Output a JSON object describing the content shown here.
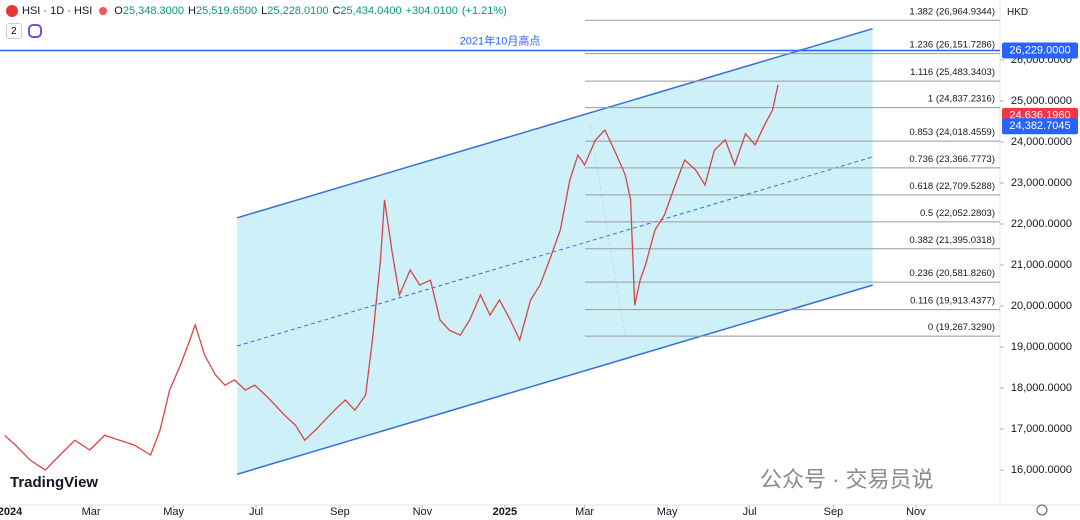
{
  "symbol": "HSI · 1D · HSI",
  "ohlc": [
    {
      "key": "O",
      "price": {
        "value": 25348.3,
        "label": "25,348.3000"
      }
    },
    {
      "key": "H",
      "price": {
        "value": 25519.65,
        "label": "25,519.6500"
      }
    },
    {
      "key": "L",
      "price": {
        "value": 25228.01,
        "label": "25,228.0100"
      }
    },
    {
      "key": "C",
      "price": {
        "value": 25434.04,
        "label": "25,434.0400"
      }
    }
  ],
  "change": {
    "value": 304.01,
    "label": "+304.0100"
  },
  "change_pct": {
    "value": 1.21,
    "label": "(+1.21%)"
  },
  "indicator_count": "2",
  "currency": "HKD",
  "watermark": "公众号 · 交易员说",
  "logo": "TradingView",
  "chart_data": {
    "type": "line",
    "color": "#d84545",
    "x": [
      -4,
      4,
      15,
      26,
      37,
      48,
      59,
      70,
      81,
      92,
      104,
      111,
      118,
      126,
      133,
      137,
      144,
      152,
      159,
      166,
      174,
      181,
      189,
      196,
      203,
      211,
      218,
      226,
      233,
      240,
      248,
      255,
      263,
      268,
      274,
      277,
      283,
      288,
      296,
      303,
      311,
      318,
      325,
      333,
      340,
      348,
      355,
      362,
      370,
      377,
      385,
      392,
      399,
      407,
      414,
      420,
      425,
      433,
      440,
      447,
      455,
      459,
      462,
      466,
      470,
      477,
      484,
      492,
      499,
      507,
      514,
      521,
      529,
      536,
      544,
      551,
      558,
      564,
      568
    ],
    "values": [
      16850,
      16610,
      16240,
      16000,
      16370,
      16730,
      16490,
      16850,
      16730,
      16610,
      16370,
      16980,
      17950,
      18560,
      19170,
      19540,
      18800,
      18320,
      18070,
      18200,
      17950,
      18070,
      17830,
      17590,
      17340,
      17100,
      16730,
      16980,
      17220,
      17460,
      17710,
      17460,
      17830,
      19170,
      21120,
      22590,
      21240,
      20270,
      20880,
      20510,
      20630,
      19660,
      19410,
      19290,
      19660,
      20270,
      19780,
      20150,
      19660,
      19170,
      20150,
      20510,
      21120,
      21850,
      23070,
      23680,
      23440,
      24050,
      24290,
      23800,
      23200,
      22590,
      20020,
      20630,
      21000,
      21850,
      22220,
      22950,
      23560,
      23320,
      22950,
      23800,
      24050,
      23440,
      24200,
      23930,
      24410,
      24780,
      25390
    ],
    "xlim": [
      -7.4,
      732.2
    ],
    "xticks": [
      {
        "value": 0,
        "label": "2024"
      },
      {
        "value": 60,
        "label": "Mar"
      },
      {
        "value": 121,
        "label": "May"
      },
      {
        "value": 182,
        "label": "Jul"
      },
      {
        "value": 244,
        "label": "Sep"
      },
      {
        "value": 305,
        "label": "Nov"
      },
      {
        "value": 366,
        "label": "2025"
      },
      {
        "value": 425,
        "label": "Mar"
      },
      {
        "value": 486,
        "label": "May"
      },
      {
        "value": 547,
        "label": "Jul"
      },
      {
        "value": 609,
        "label": "Sep"
      },
      {
        "value": 670,
        "label": "Nov"
      }
    ],
    "ylim": [
      15150,
      27460
    ],
    "yticks": [
      {
        "value": 16000,
        "label": "16,000.0000"
      },
      {
        "value": 17000,
        "label": "17,000.0000"
      },
      {
        "value": 18000,
        "label": "18,000.0000"
      },
      {
        "value": 19000,
        "label": "19,000.0000"
      },
      {
        "value": 20000,
        "label": "20,000.0000"
      },
      {
        "value": 21000,
        "label": "21,000.0000"
      },
      {
        "value": 22000,
        "label": "22,000.0000"
      },
      {
        "value": 23000,
        "label": "23,000.0000"
      },
      {
        "value": 24000,
        "label": "24,000.0000"
      },
      {
        "value": 25000,
        "label": "25,000.0000"
      },
      {
        "value": 26000,
        "label": "26,000.0000"
      }
    ],
    "channel": {
      "x": [
        168,
        638
      ],
      "upper": [
        22150,
        26760
      ],
      "lower": [
        15900,
        20510
      ],
      "color": "#3a6fd8",
      "fill": "#c9eef7"
    },
    "fib_levels": [
      {
        "ratio": 1.382,
        "price": {
          "value": 26964.9344,
          "label": "(26,964.9344)"
        }
      },
      {
        "ratio": 1.236,
        "price": {
          "value": 26151.7286,
          "label": "(26,151.7286)"
        }
      },
      {
        "ratio": 1.116,
        "price": {
          "value": 25483.3403,
          "label": "(25,483.3403)"
        }
      },
      {
        "ratio": 1,
        "price": {
          "value": 24837.2316,
          "label": "(24,837.2316)"
        }
      },
      {
        "ratio": 0.853,
        "price": {
          "value": 24018.4559,
          "label": "(24,018.4559)"
        }
      },
      {
        "ratio": 0.736,
        "price": {
          "value": 23366.7773,
          "label": "(23,366.7773)"
        }
      },
      {
        "ratio": 0.618,
        "price": {
          "value": 22709.5288,
          "label": "(22,709.5288)"
        }
      },
      {
        "ratio": 0.5,
        "price": {
          "value": 22052.2803,
          "label": "(22,052.2803)"
        }
      },
      {
        "ratio": 0.382,
        "price": {
          "value": 21395.0318,
          "label": "(21,395.0318)"
        }
      },
      {
        "ratio": 0.236,
        "price": {
          "value": 20581.826,
          "label": "(20,581.8260)"
        }
      },
      {
        "ratio": 0.116,
        "price": {
          "value": 19913.4377,
          "label": "(19,913.4377)"
        }
      },
      {
        "ratio": 0,
        "price": {
          "value": 19267.329,
          "label": "(19,267.3290)"
        }
      }
    ],
    "price_lines": [
      {
        "value": 26229,
        "label": "26,229.0000",
        "color": "#2962ff"
      },
      {
        "value": 24636.196,
        "label": "24,636.1960",
        "color": "#f23645"
      },
      {
        "value": 24382.7045,
        "label": "24,382.7045",
        "color": "#2962ff"
      }
    ],
    "annotation": "2021年10月高点"
  }
}
